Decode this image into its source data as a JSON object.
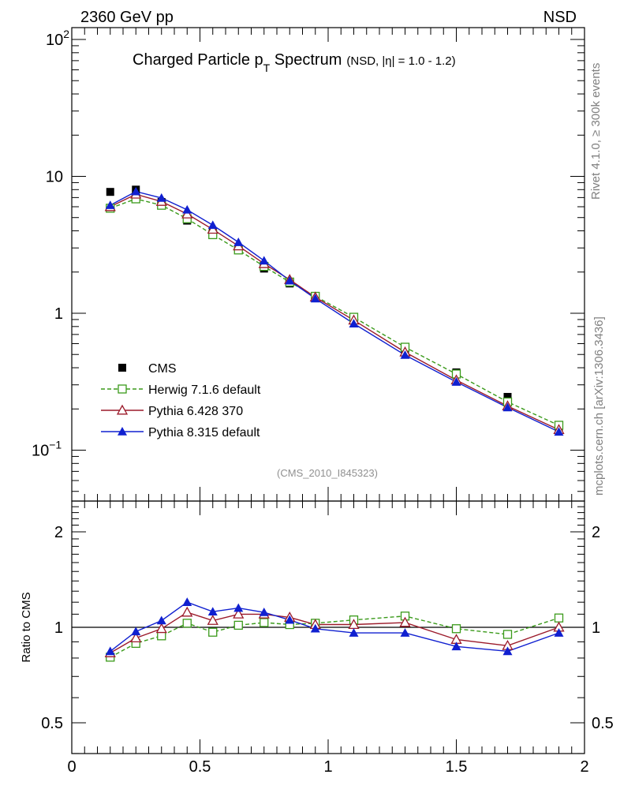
{
  "header": {
    "left": "2360 GeV pp",
    "right": "NSD"
  },
  "title": {
    "main": "Charged Particle p",
    "sub": "T",
    "main2": " Spectrum",
    "detail": "(NSD, |η| = 1.0 - 1.2)"
  },
  "side": {
    "rivet": "Rivet 4.1.0, ≥ 300k events",
    "mcplots": "mcplots.cern.ch [arXiv:1306.3436]"
  },
  "analysis_id": "(CMS_2010_I845323)",
  "colors": {
    "cms": "#000000",
    "herwig": "#3a9a1a",
    "pythia6": "#9b1a2a",
    "pythia8": "#1020d0"
  },
  "chart_data": [
    {
      "type": "scatter",
      "title": "Charged Particle pT Spectrum (NSD, |η| = 1.0 - 1.2)",
      "xlabel": "",
      "ylabel": "",
      "yscale": "log",
      "xlim": [
        0,
        2
      ],
      "ylim": [
        0.045,
        120
      ],
      "yticks": [
        {
          "value": 100,
          "base": "10",
          "exp": "2"
        },
        {
          "value": 10,
          "base": "10",
          "exp": ""
        },
        {
          "value": 1,
          "base": "1",
          "exp": ""
        },
        {
          "value": 0.1,
          "base": "10",
          "exp": "−1"
        }
      ],
      "x": [
        0.15,
        0.25,
        0.35,
        0.45,
        0.55,
        0.65,
        0.75,
        0.85,
        0.95,
        1.1,
        1.3,
        1.5,
        1.7,
        1.9
      ],
      "series": [
        {
          "name": "CMS",
          "key": "cms",
          "marker": "square-filled",
          "line": "none",
          "values": [
            7.7,
            8.0,
            6.5,
            4.75,
            3.9,
            2.9,
            2.12,
            1.65,
            1.3,
            0.9,
            0.53,
            0.37,
            0.245,
            0.142
          ]
        },
        {
          "name": "Herwig 7.1.6 default",
          "key": "herwig",
          "marker": "square-open",
          "line": "dashed",
          "values": [
            5.85,
            6.85,
            6.15,
            4.9,
            3.75,
            2.9,
            2.2,
            1.69,
            1.33,
            0.935,
            0.565,
            0.36,
            0.225,
            0.152
          ]
        },
        {
          "name": "Pythia 6.428 370",
          "key": "pythia6",
          "marker": "triangle-open",
          "line": "solid",
          "values": [
            6.0,
            7.4,
            6.55,
            5.3,
            4.1,
            3.1,
            2.3,
            1.76,
            1.31,
            0.89,
            0.52,
            0.325,
            0.21,
            0.141
          ]
        },
        {
          "name": "Pythia 8.315 default",
          "key": "pythia8",
          "marker": "triangle-filled",
          "line": "solid",
          "values": [
            6.15,
            7.75,
            6.95,
            5.7,
            4.4,
            3.3,
            2.42,
            1.73,
            1.28,
            0.84,
            0.495,
            0.315,
            0.205,
            0.136
          ]
        }
      ]
    },
    {
      "type": "line",
      "title": "",
      "xlabel": "",
      "ylabel": "Ratio to CMS",
      "yscale": "log",
      "xlim": [
        0,
        2
      ],
      "ylim": [
        0.4,
        2.4
      ],
      "yticks": [
        {
          "value": 2,
          "label": "2"
        },
        {
          "value": 1,
          "label": "1"
        },
        {
          "value": 0.5,
          "label": "0.5"
        }
      ],
      "xticks": [
        {
          "value": 0,
          "label": "0"
        },
        {
          "value": 0.5,
          "label": "0.5"
        },
        {
          "value": 1,
          "label": "1"
        },
        {
          "value": 1.5,
          "label": "1.5"
        },
        {
          "value": 2,
          "label": "2"
        }
      ],
      "x": [
        0.15,
        0.25,
        0.35,
        0.45,
        0.55,
        0.65,
        0.75,
        0.85,
        0.95,
        1.1,
        1.3,
        1.5,
        1.7,
        1.9
      ],
      "series": [
        {
          "name": "Herwig 7.1.6 default",
          "key": "herwig",
          "marker": "square-open",
          "line": "dashed",
          "values": [
            0.805,
            0.89,
            0.94,
            1.03,
            0.965,
            1.015,
            1.035,
            1.02,
            1.03,
            1.055,
            1.085,
            0.99,
            0.95,
            1.07
          ]
        },
        {
          "name": "Pythia 6.428 370",
          "key": "pythia6",
          "marker": "triangle-open",
          "line": "solid",
          "values": [
            0.83,
            0.925,
            0.99,
            1.115,
            1.05,
            1.1,
            1.1,
            1.075,
            1.02,
            1.02,
            1.035,
            0.915,
            0.875,
            1.0
          ]
        },
        {
          "name": "Pythia 8.315 default",
          "key": "pythia8",
          "marker": "triangle-filled",
          "line": "solid",
          "values": [
            0.84,
            0.97,
            1.05,
            1.2,
            1.12,
            1.15,
            1.115,
            1.055,
            0.99,
            0.96,
            0.96,
            0.87,
            0.84,
            0.96
          ]
        }
      ]
    }
  ]
}
